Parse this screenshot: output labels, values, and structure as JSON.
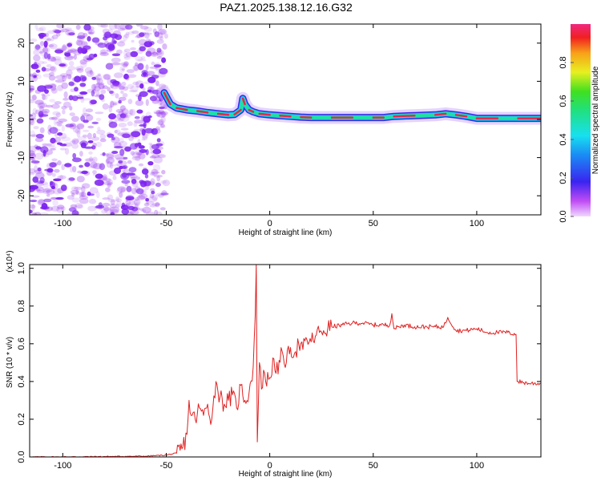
{
  "title": "PAZ1.2025.138.12.16.G32",
  "colors": {
    "snr_line": "#e02020",
    "scatter": "#9a3df0",
    "ridge_outer": "#3b28e8",
    "ridge_mid": "#20e0a0",
    "ridge_core": "#e62848",
    "frame": "#000000"
  },
  "chart_data": [
    {
      "type": "heatmap",
      "title": "",
      "xlabel": "Height of straight line (km)",
      "ylabel": "Frequency (Hz)",
      "xlim": [
        -116,
        131
      ],
      "ylim": [
        -25,
        25
      ],
      "xticks": [
        "-100",
        "-50",
        "0",
        "50",
        "100"
      ],
      "xtick_values": [
        -100,
        -50,
        0,
        50,
        100
      ],
      "yticks": [
        "-20",
        "-10",
        "0",
        "10",
        "20"
      ],
      "ytick_values": [
        -20,
        -10,
        0,
        10,
        20
      ],
      "noise_region_km": [
        -116,
        -50
      ],
      "ridge": {
        "x": [
          -51,
          -48,
          -45,
          -40,
          -35,
          -30,
          -25,
          -20,
          -17,
          -14,
          -13,
          -12,
          -10,
          -8,
          -5,
          0,
          5,
          10,
          15,
          20,
          30,
          40,
          50,
          55,
          60,
          70,
          80,
          85,
          90,
          95,
          100,
          110,
          120,
          131
        ],
        "freq_hz": [
          7,
          4,
          3,
          2.5,
          2.2,
          1.8,
          1.5,
          1.2,
          1.3,
          2.5,
          5.5,
          4,
          2.5,
          2,
          1.5,
          1.2,
          1,
          0.8,
          0.6,
          0.5,
          0.5,
          0.5,
          0.5,
          0.5,
          0.8,
          1,
          1.2,
          1.5,
          1.2,
          0.8,
          0.3,
          0.3,
          0.3,
          0.3
        ]
      },
      "colorbar": {
        "label": "Normalized spectral amplitude",
        "range": [
          0,
          1
        ],
        "ticks": [
          "0.0",
          "0.2",
          "0.4",
          "0.6",
          "0.8"
        ],
        "tick_values": [
          0,
          0.2,
          0.4,
          0.6,
          0.8
        ]
      }
    },
    {
      "type": "line",
      "title": "",
      "xlabel": "Height of straight line (km)",
      "ylabel": "SNR (10 * v/v)",
      "y_multiplier_label": "(x10⁴)",
      "xlim": [
        -116,
        131
      ],
      "ylim": [
        0,
        1.02
      ],
      "xticks": [
        "-100",
        "-50",
        "0",
        "50",
        "100"
      ],
      "xtick_values": [
        -100,
        -50,
        0,
        50,
        100
      ],
      "yticks": [
        "0.0",
        "0.2",
        "0.4",
        "0.6",
        "0.8",
        "1.0"
      ],
      "ytick_values": [
        0,
        0.2,
        0.4,
        0.6,
        0.8,
        1.0
      ],
      "series": [
        {
          "x": [
            -116,
            -100,
            -80,
            -60,
            -50,
            -45,
            -42,
            -40,
            -39,
            -38,
            -36,
            -34,
            -32,
            -30,
            -28,
            -26,
            -24,
            -22,
            -20,
            -18,
            -16,
            -14,
            -12,
            -10,
            -8,
            -7,
            -6.5,
            -6,
            -5,
            -4,
            -3,
            -2,
            0,
            2,
            4,
            6,
            8,
            10,
            12,
            14,
            16,
            18,
            20,
            22,
            24,
            26,
            28,
            30,
            35,
            40,
            45,
            50,
            55,
            58,
            59,
            60,
            65,
            70,
            75,
            80,
            84,
            86,
            90,
            95,
            100,
            105,
            110,
            115,
            119,
            119.5,
            120,
            125,
            131
          ],
          "y": [
            0.0,
            0.0,
            0.002,
            0.004,
            0.01,
            0.02,
            0.05,
            0.12,
            0.3,
            0.22,
            0.2,
            0.26,
            0.22,
            0.28,
            0.2,
            0.4,
            0.32,
            0.28,
            0.3,
            0.33,
            0.26,
            0.38,
            0.3,
            0.34,
            0.48,
            0.75,
            1.02,
            0.08,
            0.5,
            0.36,
            0.46,
            0.4,
            0.42,
            0.52,
            0.44,
            0.56,
            0.5,
            0.58,
            0.55,
            0.6,
            0.57,
            0.62,
            0.61,
            0.64,
            0.66,
            0.67,
            0.68,
            0.69,
            0.7,
            0.71,
            0.71,
            0.7,
            0.7,
            0.7,
            0.76,
            0.68,
            0.7,
            0.69,
            0.69,
            0.69,
            0.69,
            0.74,
            0.67,
            0.67,
            0.68,
            0.66,
            0.66,
            0.66,
            0.65,
            0.4,
            0.4,
            0.39,
            0.39
          ]
        }
      ]
    }
  ]
}
